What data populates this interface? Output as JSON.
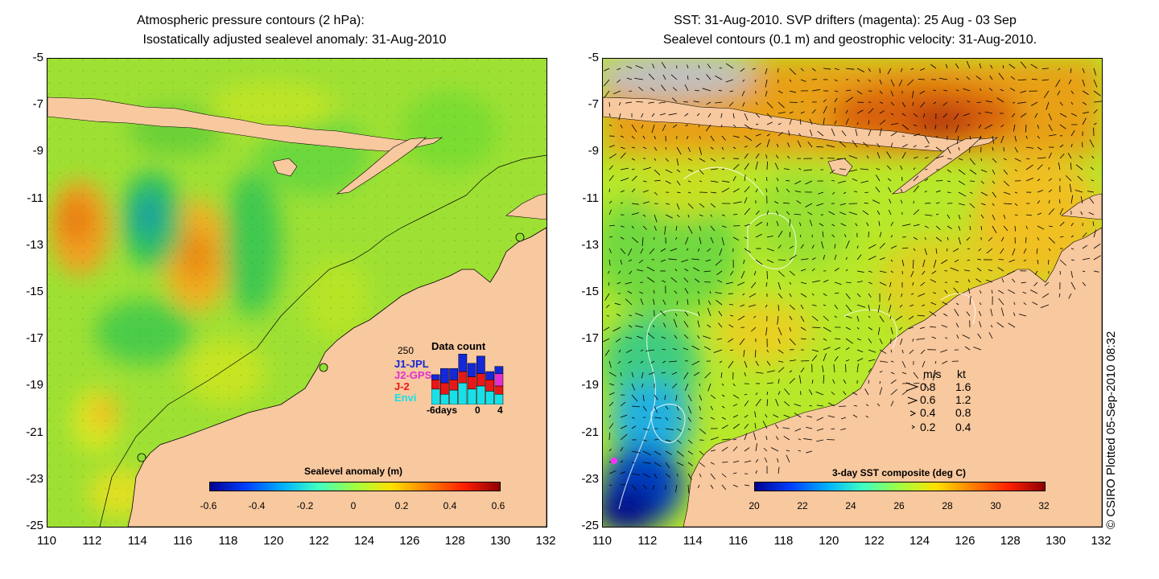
{
  "left_panel": {
    "title_line1": "Atmospheric pressure contours (2 hPa):",
    "title_line2": "Isostatically adjusted sealevel anomaly: 31-Aug-2010",
    "colorbar": {
      "title": "Sealevel anomaly (m)",
      "ticks": [
        "-0.6",
        "-0.4",
        "-0.2",
        "0",
        "0.2",
        "0.4",
        "0.6"
      ]
    },
    "data_count": {
      "title": "Data count",
      "max_label": "250",
      "x_ticks": [
        "-6days",
        "0",
        "4"
      ],
      "legend": [
        {
          "label": "J1-JPL",
          "color": "#1428d8"
        },
        {
          "label": "J2-GPS",
          "color": "#e030d0"
        },
        {
          "label": "J-2",
          "color": "#e81818"
        },
        {
          "label": "Envi",
          "color": "#18e0e8"
        }
      ],
      "bars": [
        {
          "envi": 0.3,
          "j2": 0.18,
          "j2gps": 0.0,
          "j1": 0.1
        },
        {
          "envi": 0.2,
          "j2": 0.22,
          "j2gps": 0.0,
          "j1": 0.28
        },
        {
          "envi": 0.28,
          "j2": 0.2,
          "j2gps": 0.0,
          "j1": 0.22
        },
        {
          "envi": 0.42,
          "j2": 0.22,
          "j2gps": 0.0,
          "j1": 0.34
        },
        {
          "envi": 0.3,
          "j2": 0.24,
          "j2gps": 0.0,
          "j1": 0.26
        },
        {
          "envi": 0.36,
          "j2": 0.24,
          "j2gps": 0.0,
          "j1": 0.34
        },
        {
          "envi": 0.26,
          "j2": 0.22,
          "j2gps": 0.0,
          "j1": 0.16
        },
        {
          "envi": 0.2,
          "j2": 0.16,
          "j2gps": 0.24,
          "j1": 0.14
        }
      ]
    }
  },
  "right_panel": {
    "title_line1": "SST: 31-Aug-2010. SVP drifters (magenta): 25 Aug - 03 Sep",
    "title_line2": "Sealevel contours (0.1 m) and geostrophic velocity: 31-Aug-2010.",
    "colorbar": {
      "title": "3-day SST composite (deg C)",
      "ticks": [
        "20",
        "22",
        "24",
        "26",
        "28",
        "30",
        "32"
      ]
    },
    "velocity_legend": {
      "header_ms": "m/s",
      "header_kt": "kt",
      "rows": [
        {
          "ms": "0.8",
          "kt": "1.6"
        },
        {
          "ms": "0.6",
          "kt": "1.2"
        },
        {
          "ms": "0.4",
          "kt": "0.8"
        },
        {
          "ms": "0.2",
          "kt": "0.4"
        }
      ]
    }
  },
  "axes": {
    "y_ticks": [
      "-5",
      "-7",
      "-9",
      "-11",
      "-13",
      "-15",
      "-17",
      "-19",
      "-21",
      "-23",
      "-25"
    ],
    "x_ticks": [
      "110",
      "112",
      "114",
      "116",
      "118",
      "120",
      "122",
      "124",
      "126",
      "128",
      "130",
      "132"
    ]
  },
  "credit": "© CSIRO Plotted 05-Sep-2010 08:32",
  "colors": {
    "land": "#f8c89e",
    "sla_base": "#8ee03a",
    "sst_base": "#b8e82a"
  }
}
